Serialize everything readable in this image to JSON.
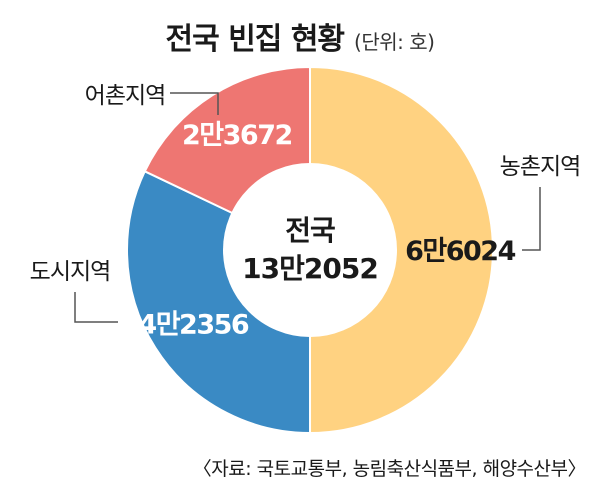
{
  "title": "전국 빈집 현황",
  "unit": "(단위: 호)",
  "source": "〈자료: 국토교통부, 농림축산식품부, 해양수산부〉",
  "chart_data": {
    "type": "pie",
    "title": "전국 빈집 현황",
    "unit": "(단위: 호)",
    "center_label": "전국",
    "total": 132052,
    "total_label": "13만2052",
    "slices": [
      {
        "name": "농촌지역",
        "value": 66024,
        "label": "6만6024",
        "color": "#ffd281",
        "label_color": "#1a1a1a"
      },
      {
        "name": "도시지역",
        "value": 42356,
        "label": "4만2356",
        "color": "#3a8ac4",
        "label_color": "#ffffff"
      },
      {
        "name": "어촌지역",
        "value": 23672,
        "label": "2만3672",
        "color": "#ee7672",
        "label_color": "#ffffff"
      }
    ]
  }
}
